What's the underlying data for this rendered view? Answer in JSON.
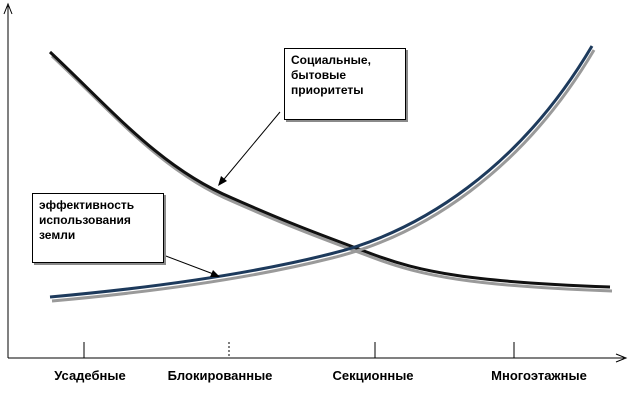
{
  "diagram": {
    "categories": [
      "Усадебные",
      "Блокированные",
      "Секционные",
      "Многоэтажные"
    ],
    "annotations": {
      "social": "Социальные,\n бытовые\n приоритеты",
      "efficiency": "эффективность\nиспользования\nземли"
    },
    "curves": [
      {
        "id": "social-priorities",
        "trend": "decreasing",
        "color": "#111111"
      },
      {
        "id": "land-use-efficiency",
        "trend": "increasing",
        "color": "#1d3a5c"
      }
    ],
    "axis_color": "#000000"
  }
}
